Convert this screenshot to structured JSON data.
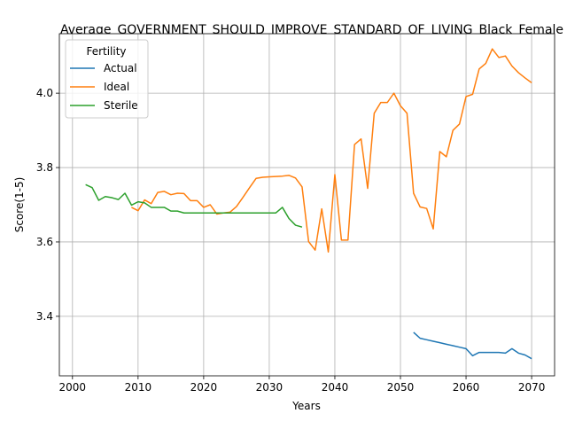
{
  "chart_data": {
    "type": "line",
    "title": "Average_GOVERNMENT_SHOULD_IMPROVE_STANDARD_OF_LIVING_Black_Female",
    "xlabel": "Years",
    "ylabel": "Score(1-5)",
    "xlim": [
      1998,
      2073.5
    ],
    "ylim": [
      3.24,
      4.16
    ],
    "xticks": [
      2000,
      2010,
      2020,
      2030,
      2040,
      2050,
      2060,
      2070
    ],
    "yticks": [
      3.4,
      3.6,
      3.8,
      4.0
    ],
    "xtick_labels": [
      "2000",
      "2010",
      "2020",
      "2030",
      "2040",
      "2050",
      "2060",
      "2070"
    ],
    "ytick_labels": [
      "3.4",
      "3.6",
      "3.8",
      "4.0"
    ],
    "grid": true,
    "legend": {
      "title": "Fertility",
      "position": "top-left"
    },
    "series": [
      {
        "name": "Actual",
        "color": "#1f77b4",
        "x": [
          2052,
          2053,
          2054,
          2055,
          2056,
          2057,
          2058,
          2059,
          2060,
          2061,
          2062,
          2063,
          2064,
          2065,
          2066,
          2067,
          2068,
          2069,
          2070
        ],
        "y": [
          3.357,
          3.341,
          3.337,
          3.333,
          3.329,
          3.325,
          3.321,
          3.317,
          3.313,
          3.294,
          3.303,
          3.303,
          3.303,
          3.303,
          3.301,
          3.313,
          3.301,
          3.296,
          3.286
        ]
      },
      {
        "name": "Ideal",
        "color": "#ff7f0e",
        "x": [
          2009,
          2010,
          2011,
          2012,
          2013,
          2014,
          2015,
          2016,
          2017,
          2018,
          2019,
          2020,
          2021,
          2022,
          2023,
          2024,
          2025,
          2026,
          2027,
          2028,
          2029,
          2030,
          2031,
          2032,
          2033,
          2034,
          2035,
          2036,
          2037,
          2038,
          2039,
          2040,
          2041,
          2042,
          2043,
          2044,
          2045,
          2046,
          2047,
          2048,
          2049,
          2050,
          2051,
          2052,
          2053,
          2054,
          2055,
          2056,
          2057,
          2058,
          2059,
          2060,
          2061,
          2062,
          2063,
          2064,
          2065,
          2066,
          2067,
          2068,
          2069,
          2070
        ],
        "y": [
          3.693,
          3.684,
          3.713,
          3.703,
          3.733,
          3.736,
          3.727,
          3.731,
          3.73,
          3.711,
          3.711,
          3.693,
          3.7,
          3.675,
          3.678,
          3.68,
          3.695,
          3.72,
          3.746,
          3.771,
          3.774,
          3.775,
          3.776,
          3.777,
          3.779,
          3.772,
          3.748,
          3.601,
          3.578,
          3.689,
          3.573,
          3.781,
          3.605,
          3.605,
          3.862,
          3.877,
          3.744,
          3.946,
          3.975,
          3.975,
          4.0,
          3.966,
          3.946,
          3.731,
          3.694,
          3.69,
          3.635,
          3.843,
          3.829,
          3.9,
          3.917,
          3.991,
          3.997,
          4.065,
          4.08,
          4.119,
          4.096,
          4.1,
          4.073,
          4.055,
          4.041,
          4.028
        ]
      },
      {
        "name": "Sterile",
        "color": "#2ca02c",
        "x": [
          2002,
          2003,
          2004,
          2005,
          2006,
          2007,
          2008,
          2009,
          2010,
          2011,
          2012,
          2013,
          2014,
          2015,
          2016,
          2017,
          2018,
          2019,
          2020,
          2021,
          2022,
          2023,
          2024,
          2025,
          2026,
          2027,
          2028,
          2029,
          2030,
          2031,
          2032,
          2033,
          2034,
          2035
        ],
        "y": [
          3.754,
          3.746,
          3.712,
          3.722,
          3.719,
          3.714,
          3.731,
          3.699,
          3.708,
          3.705,
          3.693,
          3.693,
          3.693,
          3.683,
          3.683,
          3.678,
          3.678,
          3.678,
          3.678,
          3.678,
          3.678,
          3.678,
          3.678,
          3.678,
          3.678,
          3.678,
          3.678,
          3.678,
          3.678,
          3.678,
          3.693,
          3.663,
          3.645,
          3.64
        ]
      }
    ]
  }
}
